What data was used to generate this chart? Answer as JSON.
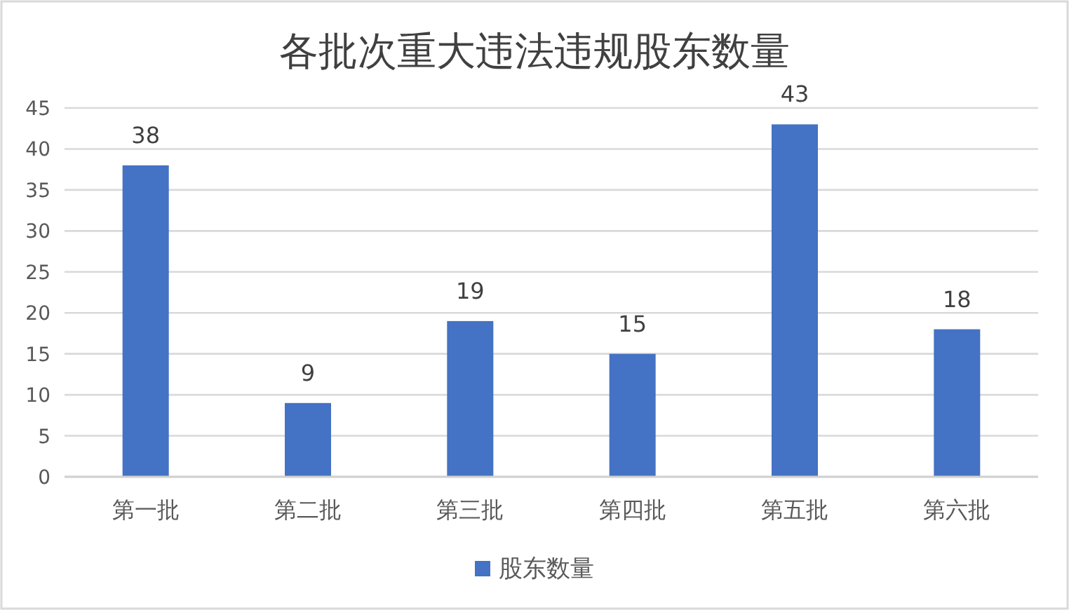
{
  "chart_data": {
    "type": "bar",
    "title": "各批次重大违法违规股东数量",
    "categories": [
      "第一批",
      "第二批",
      "第三批",
      "第四批",
      "第五批",
      "第六批"
    ],
    "series": [
      {
        "name": "股东数量",
        "color": "#4472c4",
        "values": [
          38,
          9,
          19,
          15,
          43,
          18
        ]
      }
    ],
    "ylim": [
      0,
      45
    ],
    "yticks": [
      0,
      5,
      10,
      15,
      20,
      25,
      30,
      35,
      40,
      45
    ],
    "grid": "y",
    "legend": "bottom",
    "data_labels": true
  }
}
